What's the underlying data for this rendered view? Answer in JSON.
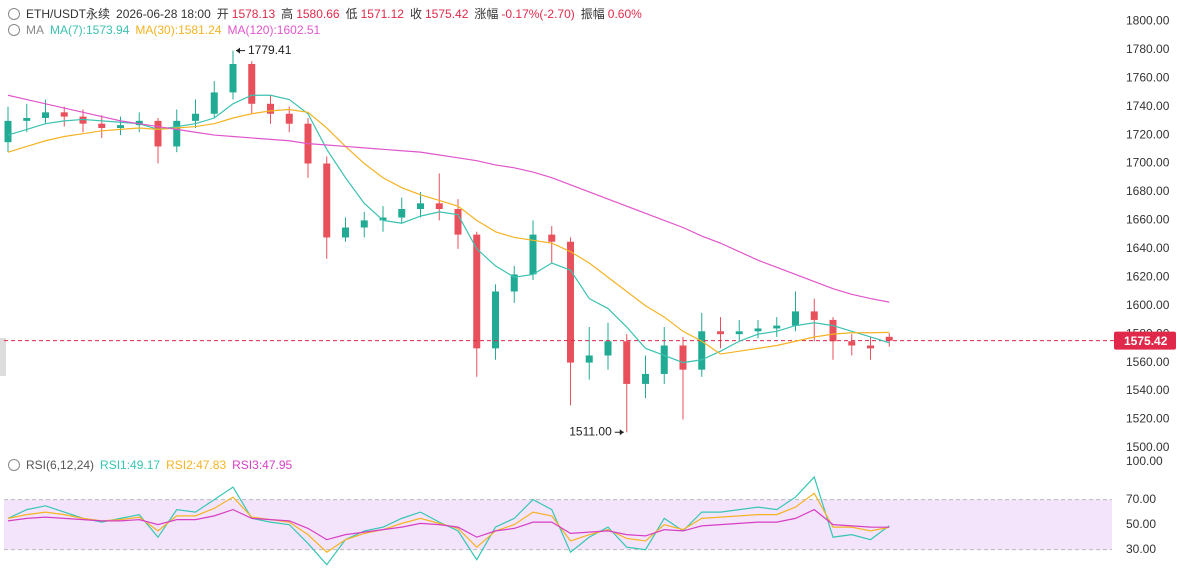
{
  "chart_data": [
    {
      "type": "candlestick",
      "header": {
        "symbol": "ETH/USDT永续",
        "time": "2026-06-28 18:00",
        "items": [
          {
            "label": "开",
            "value": 1578.13
          },
          {
            "label": "高",
            "value": 1580.66
          },
          {
            "label": "低",
            "value": 1571.12
          },
          {
            "label": "收",
            "value": 1575.42
          },
          {
            "label": "涨幅",
            "value": "-0.17%(-2.70)"
          },
          {
            "label": "振幅",
            "value": {
              "value": 0.6,
              "label": "0.60%"
            }
          }
        ]
      },
      "indicator": "MA",
      "open": [
        1715,
        1730,
        1732,
        1736,
        1733,
        1728,
        1725,
        1727,
        1730,
        1712,
        1730,
        1735,
        1750,
        1770,
        1742,
        1735,
        1728,
        1700,
        1648,
        1655,
        1660,
        1662,
        1668,
        1672,
        1668,
        1650,
        1570,
        1610,
        1622,
        1650,
        1645,
        1560,
        1565,
        1575,
        1545,
        1552,
        1572,
        1555,
        1582,
        1580,
        1582,
        1584,
        1586,
        1596,
        1590,
        1575,
        1572,
        1578.13
      ],
      "high": [
        1740,
        1742,
        1745,
        1740,
        1738,
        1734,
        1733,
        1736,
        1732,
        1738,
        1745,
        1758,
        1779.41,
        1772,
        1748,
        1740,
        1732,
        1705,
        1662,
        1666,
        1670,
        1676,
        1680,
        1693,
        1675,
        1652,
        1615,
        1628,
        1660,
        1656,
        1648,
        1585,
        1588,
        1580,
        1565,
        1585,
        1578,
        1595,
        1592,
        1590,
        1590,
        1592,
        1610,
        1605,
        1592,
        1580,
        1578,
        1580.66
      ],
      "low": [
        1708,
        1722,
        1728,
        1726,
        1722,
        1718,
        1720,
        1722,
        1700,
        1708,
        1725,
        1732,
        1745,
        1735,
        1728,
        1722,
        1690,
        1633,
        1645,
        1648,
        1652,
        1658,
        1662,
        1660,
        1640,
        1550,
        1562,
        1602,
        1618,
        1630,
        1530,
        1548,
        1555,
        1511,
        1535,
        1545,
        1520,
        1550,
        1570,
        1575,
        1577,
        1578,
        1582,
        1575,
        1562,
        1565,
        1562,
        1571.12
      ],
      "close": [
        1730,
        1732,
        1736,
        1733,
        1728,
        1725,
        1727,
        1730,
        1712,
        1730,
        1735,
        1750,
        1770,
        1742,
        1735,
        1728,
        1700,
        1648,
        1655,
        1660,
        1662,
        1668,
        1672,
        1668,
        1650,
        1570,
        1610,
        1622,
        1650,
        1645,
        1560,
        1565,
        1575,
        1545,
        1552,
        1572,
        1555,
        1582,
        1580,
        1582,
        1584,
        1586,
        1596,
        1590,
        1575,
        1572,
        1570,
        1575.42
      ],
      "up_color": "#22ab94",
      "down_color": "#e8505b",
      "series": [
        {
          "name": "MA(7):1573.94",
          "color": "#3cc2b0",
          "values": [
            1720,
            1724,
            1728,
            1730,
            1731,
            1730,
            1729,
            1728,
            1724,
            1726,
            1728,
            1732,
            1742,
            1748,
            1748,
            1745,
            1735,
            1710,
            1690,
            1672,
            1660,
            1658,
            1663,
            1666,
            1664,
            1640,
            1628,
            1620,
            1622,
            1630,
            1625,
            1605,
            1598,
            1585,
            1570,
            1565,
            1560,
            1562,
            1568,
            1575,
            1580,
            1582,
            1586,
            1588,
            1586,
            1582,
            1578,
            1573.94
          ]
        },
        {
          "name": "MA(30):1581.24",
          "color": "#f5b324",
          "values": [
            1708,
            1712,
            1716,
            1719,
            1721,
            1723,
            1724,
            1725,
            1724,
            1725,
            1726,
            1728,
            1732,
            1735,
            1737,
            1738,
            1736,
            1725,
            1712,
            1700,
            1690,
            1683,
            1678,
            1674,
            1670,
            1660,
            1652,
            1648,
            1646,
            1644,
            1638,
            1630,
            1620,
            1610,
            1600,
            1592,
            1582,
            1575,
            1566,
            1568,
            1570,
            1572,
            1575,
            1578,
            1580,
            1581,
            1581,
            1581.24
          ]
        },
        {
          "name": "MA(120):1602.51",
          "color": "#e056cc",
          "values": [
            1748,
            1745,
            1742,
            1739,
            1736,
            1733,
            1730,
            1728,
            1726,
            1724,
            1722,
            1720,
            1719,
            1718,
            1717,
            1716,
            1714,
            1713,
            1712,
            1711,
            1710,
            1709,
            1708,
            1706,
            1704,
            1702,
            1699,
            1697,
            1694,
            1690,
            1685,
            1680,
            1675,
            1670,
            1665,
            1660,
            1655,
            1649,
            1644,
            1638,
            1632,
            1627,
            1622,
            1617,
            1612,
            1608,
            1605,
            1602.51
          ]
        }
      ],
      "ylim": [
        1495,
        1815
      ],
      "yticks": [
        {
          "value": 1800,
          "label": "1800.00"
        },
        {
          "value": 1780,
          "label": "1780.00"
        },
        {
          "value": 1760,
          "label": "1760.00"
        },
        {
          "value": 1740,
          "label": "1740.00"
        },
        {
          "value": 1720,
          "label": "1720.00"
        },
        {
          "value": 1700,
          "label": "1700.00"
        },
        {
          "value": 1680,
          "label": "1680.00"
        },
        {
          "value": 1660,
          "label": "1660.00"
        },
        {
          "value": 1640,
          "label": "1640.00"
        },
        {
          "value": 1620,
          "label": "1620.00"
        },
        {
          "value": 1600,
          "label": "1600.00"
        },
        {
          "value": 1580,
          "label": "1580.00"
        },
        {
          "value": 1560,
          "label": "1560.00"
        },
        {
          "value": 1540,
          "label": "1540.00"
        },
        {
          "value": 1520,
          "label": "1520.00"
        },
        {
          "value": 1500,
          "label": "1500.00"
        }
      ],
      "last_price": 1575.42,
      "last_price_color": "#e0294a",
      "annotations": [
        1779.41,
        {
          "value": 1511,
          "label": "1511.00"
        }
      ]
    },
    {
      "type": "line",
      "indicator": "RSI(6,12,24)",
      "series": [
        {
          "name": "RSI1:49.17",
          "color": "#36c6b4",
          "values": [
            55,
            62,
            65,
            60,
            55,
            52,
            55,
            58,
            40,
            62,
            60,
            70,
            80,
            55,
            52,
            50,
            35,
            18,
            38,
            45,
            48,
            55,
            60,
            52,
            45,
            22,
            48,
            55,
            70,
            62,
            28,
            40,
            48,
            32,
            30,
            55,
            45,
            60,
            60,
            62,
            64,
            62,
            72,
            88,
            40,
            42,
            38,
            49.17
          ]
        },
        {
          "name": "RSI2:47.83",
          "color": "#f5b324",
          "values": [
            55,
            58,
            60,
            58,
            55,
            53,
            54,
            56,
            45,
            57,
            57,
            63,
            72,
            56,
            54,
            52,
            42,
            28,
            38,
            43,
            46,
            51,
            55,
            51,
            47,
            32,
            45,
            50,
            60,
            57,
            37,
            42,
            46,
            39,
            37,
            50,
            46,
            55,
            56,
            57,
            58,
            58,
            64,
            75,
            48,
            48,
            45,
            47.83
          ]
        },
        {
          "name": "RSI3:47.95",
          "color": "#d63fc4",
          "values": [
            53,
            55,
            56,
            55,
            54,
            53,
            53,
            54,
            50,
            54,
            54,
            57,
            62,
            55,
            54,
            53,
            47,
            38,
            42,
            44,
            46,
            48,
            51,
            50,
            48,
            40,
            45,
            47,
            52,
            52,
            43,
            44,
            45,
            42,
            41,
            46,
            45,
            49,
            50,
            51,
            52,
            52,
            55,
            62,
            50,
            49,
            48,
            47.95
          ]
        }
      ],
      "ylim": [
        1,
        104
      ],
      "yticks": [
        {
          "value": 100,
          "label": "100.00"
        },
        {
          "value": 70,
          "label": "70.00"
        },
        {
          "value": 50,
          "label": "50.00"
        },
        {
          "value": 30,
          "label": "30.00"
        }
      ],
      "band": [
        30,
        70
      ],
      "band_color": "#f3e4fc"
    }
  ]
}
